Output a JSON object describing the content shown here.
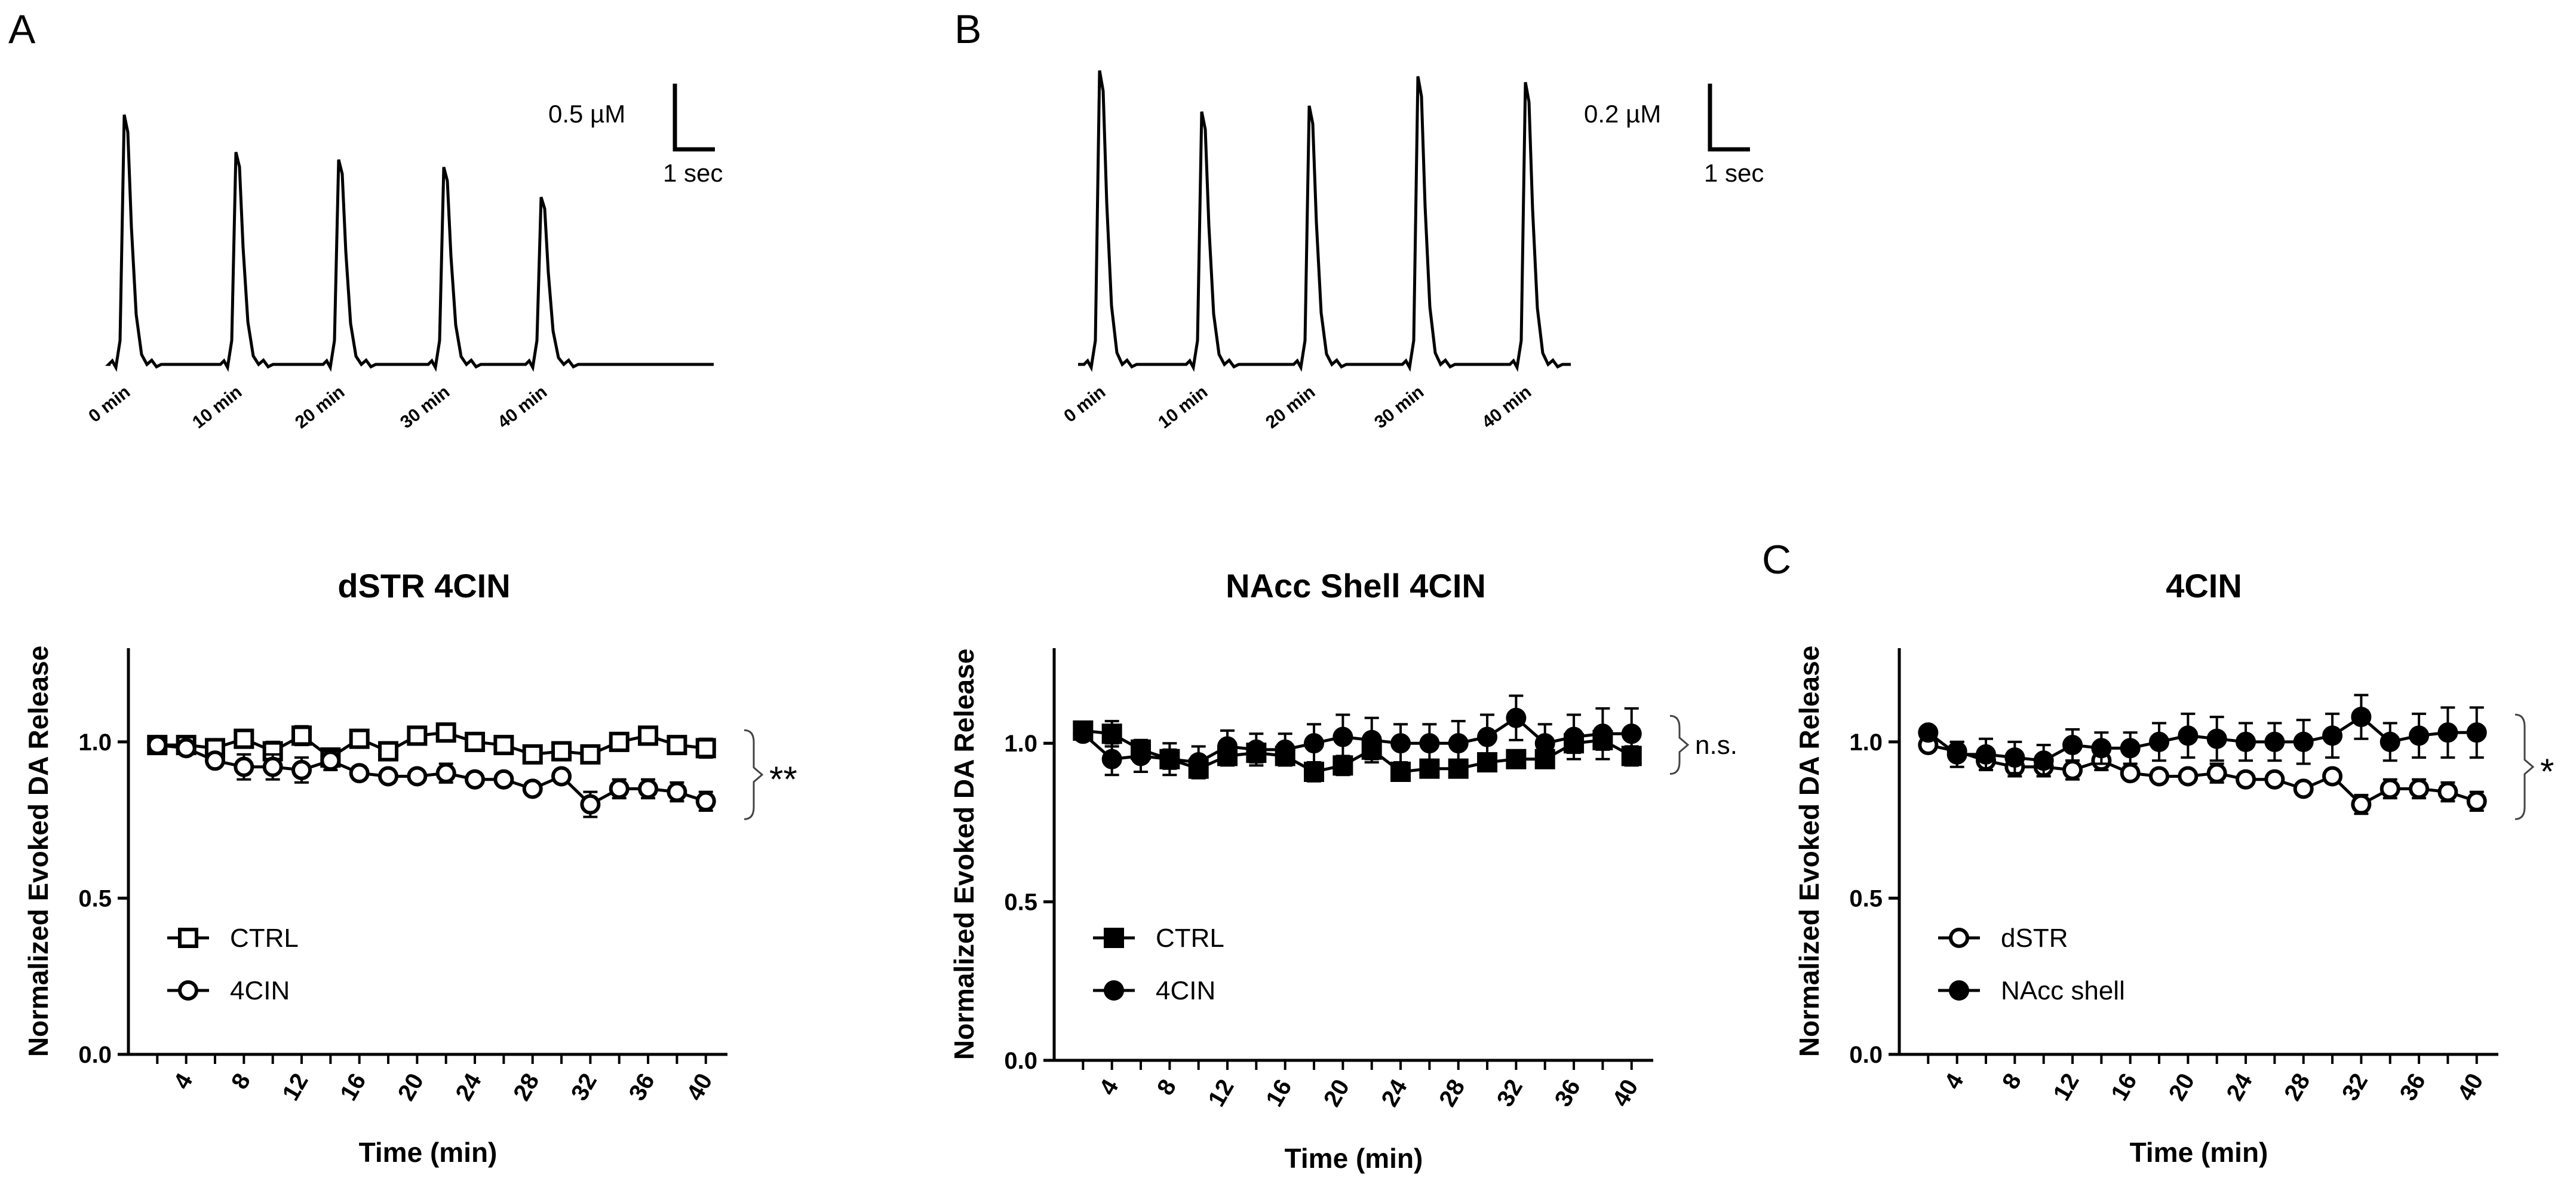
{
  "figure": {
    "panel_labels": {
      "A": "A",
      "B": "B",
      "C": "C"
    }
  },
  "traces": [
    {
      "panel": "A",
      "scale_conc": "0.5 µM",
      "scale_time": "1 sec",
      "peaks": [
        {
          "label": "0 min",
          "height": 1.0
        },
        {
          "label": "10 min",
          "height": 0.85
        },
        {
          "label": "20 min",
          "height": 0.82
        },
        {
          "label": "30 min",
          "height": 0.79
        },
        {
          "label": "40 min",
          "height": 0.67
        }
      ]
    },
    {
      "panel": "B",
      "scale_conc": "0.2 µM",
      "scale_time": "1 sec",
      "peaks": [
        {
          "label": "0 min",
          "height": 1.0
        },
        {
          "label": "10 min",
          "height": 0.86
        },
        {
          "label": "20 min",
          "height": 0.88
        },
        {
          "label": "30 min",
          "height": 0.98
        },
        {
          "label": "40 min",
          "height": 0.96
        }
      ]
    }
  ],
  "chart_data": [
    {
      "panel": "A",
      "type": "line",
      "title": "dSTR 4CIN",
      "xlabel": "Time (min)",
      "ylabel": "Normalized Evoked DA Release",
      "xlim": [
        0,
        41.5
      ],
      "ylim": [
        0,
        1.3
      ],
      "xticks": [
        4,
        8,
        12,
        16,
        20,
        24,
        28,
        32,
        36,
        40
      ],
      "yticks": [
        0.0,
        0.5,
        1.0
      ],
      "ytick_labels": [
        "0.0",
        "0.5",
        "1.0"
      ],
      "x": [
        2,
        4,
        6,
        8,
        10,
        12,
        14,
        16,
        18,
        20,
        22,
        24,
        26,
        28,
        30,
        32,
        34,
        36,
        38,
        40
      ],
      "series": [
        {
          "name": "CTRL",
          "marker": "square-open",
          "values": [
            0.99,
            0.99,
            0.98,
            1.01,
            0.97,
            1.02,
            0.95,
            1.01,
            0.97,
            1.02,
            1.03,
            1.0,
            0.99,
            0.96,
            0.97,
            0.96,
            1.0,
            1.02,
            0.99,
            0.98
          ],
          "errors": [
            0.01,
            0.02,
            0.02,
            0.02,
            0.03,
            0.03,
            0.02,
            0.02,
            0.02,
            0.02,
            0.02,
            0.02,
            0.02,
            0.02,
            0.02,
            0.02,
            0.02,
            0.02,
            0.02,
            0.03
          ]
        },
        {
          "name": "4CIN",
          "marker": "circle-open",
          "values": [
            0.99,
            0.98,
            0.94,
            0.92,
            0.92,
            0.91,
            0.94,
            0.9,
            0.89,
            0.89,
            0.9,
            0.88,
            0.88,
            0.85,
            0.89,
            0.8,
            0.85,
            0.85,
            0.84,
            0.81
          ],
          "errors": [
            0.01,
            0.02,
            0.02,
            0.04,
            0.04,
            0.04,
            0.03,
            0.02,
            0.02,
            0.02,
            0.03,
            0.02,
            0.02,
            0.02,
            0.02,
            0.04,
            0.03,
            0.03,
            0.03,
            0.03
          ]
        }
      ],
      "significance": "**"
    },
    {
      "panel": "B",
      "type": "line",
      "title": "NAcc Shell 4CIN",
      "xlabel": "Time (min)",
      "ylabel": "Normalized Evoked DA Release",
      "xlim": [
        0,
        41.5
      ],
      "ylim": [
        0,
        1.3
      ],
      "xticks": [
        4,
        8,
        12,
        16,
        20,
        24,
        28,
        32,
        36,
        40
      ],
      "yticks": [
        0.0,
        0.5,
        1.0
      ],
      "ytick_labels": [
        "0.0",
        "0.5",
        "1.0"
      ],
      "x": [
        2,
        4,
        6,
        8,
        10,
        12,
        14,
        16,
        18,
        20,
        22,
        24,
        26,
        28,
        30,
        32,
        34,
        36,
        38,
        40
      ],
      "series": [
        {
          "name": "CTRL",
          "marker": "square-filled",
          "values": [
            1.04,
            1.03,
            0.98,
            0.95,
            0.92,
            0.96,
            0.97,
            0.96,
            0.91,
            0.93,
            0.98,
            0.91,
            0.92,
            0.92,
            0.94,
            0.95,
            0.95,
            1.0,
            1.01,
            0.96
          ],
          "errors": [
            0.02,
            0.04,
            0.03,
            0.03,
            0.03,
            0.03,
            0.03,
            0.03,
            0.03,
            0.03,
            0.03,
            0.02,
            0.02,
            0.02,
            0.02,
            0.02,
            0.02,
            0.03,
            0.03,
            0.03
          ]
        },
        {
          "name": "4CIN",
          "marker": "circle-filled",
          "values": [
            1.03,
            0.95,
            0.96,
            0.95,
            0.94,
            0.99,
            0.98,
            0.98,
            1.0,
            1.02,
            1.01,
            1.0,
            1.0,
            1.0,
            1.02,
            1.08,
            1.0,
            1.02,
            1.03,
            1.03
          ],
          "errors": [
            0.02,
            0.05,
            0.05,
            0.05,
            0.05,
            0.05,
            0.05,
            0.05,
            0.06,
            0.07,
            0.07,
            0.06,
            0.06,
            0.07,
            0.07,
            0.07,
            0.06,
            0.07,
            0.08,
            0.08
          ]
        }
      ],
      "significance": "n.s."
    },
    {
      "panel": "C",
      "type": "line",
      "title": "4CIN",
      "xlabel": "Time (min)",
      "ylabel": "Normalized Evoked DA Release",
      "xlim": [
        0,
        41.5
      ],
      "ylim": [
        0,
        1.3
      ],
      "xticks": [
        4,
        8,
        12,
        16,
        20,
        24,
        28,
        32,
        36,
        40
      ],
      "yticks": [
        0.0,
        0.5,
        1.0
      ],
      "ytick_labels": [
        "0.0",
        "0.5",
        "1.0"
      ],
      "x": [
        2,
        4,
        6,
        8,
        10,
        12,
        14,
        16,
        18,
        20,
        22,
        24,
        26,
        28,
        30,
        32,
        34,
        36,
        38,
        40
      ],
      "series": [
        {
          "name": "dSTR",
          "marker": "circle-open",
          "values": [
            0.99,
            0.97,
            0.94,
            0.92,
            0.92,
            0.91,
            0.94,
            0.9,
            0.89,
            0.89,
            0.9,
            0.88,
            0.88,
            0.85,
            0.89,
            0.8,
            0.85,
            0.85,
            0.84,
            0.81
          ],
          "errors": [
            0.01,
            0.03,
            0.03,
            0.03,
            0.03,
            0.03,
            0.03,
            0.02,
            0.02,
            0.02,
            0.03,
            0.02,
            0.02,
            0.02,
            0.02,
            0.03,
            0.03,
            0.03,
            0.03,
            0.03
          ]
        },
        {
          "name": "NAcc shell",
          "marker": "circle-filled",
          "values": [
            1.03,
            0.96,
            0.96,
            0.95,
            0.94,
            0.99,
            0.98,
            0.98,
            1.0,
            1.02,
            1.01,
            1.0,
            1.0,
            1.0,
            1.02,
            1.08,
            1.0,
            1.02,
            1.03,
            1.03
          ],
          "errors": [
            0.01,
            0.04,
            0.05,
            0.05,
            0.05,
            0.05,
            0.05,
            0.05,
            0.06,
            0.07,
            0.07,
            0.06,
            0.06,
            0.07,
            0.07,
            0.07,
            0.06,
            0.07,
            0.08,
            0.08
          ]
        }
      ],
      "significance": "*"
    }
  ]
}
